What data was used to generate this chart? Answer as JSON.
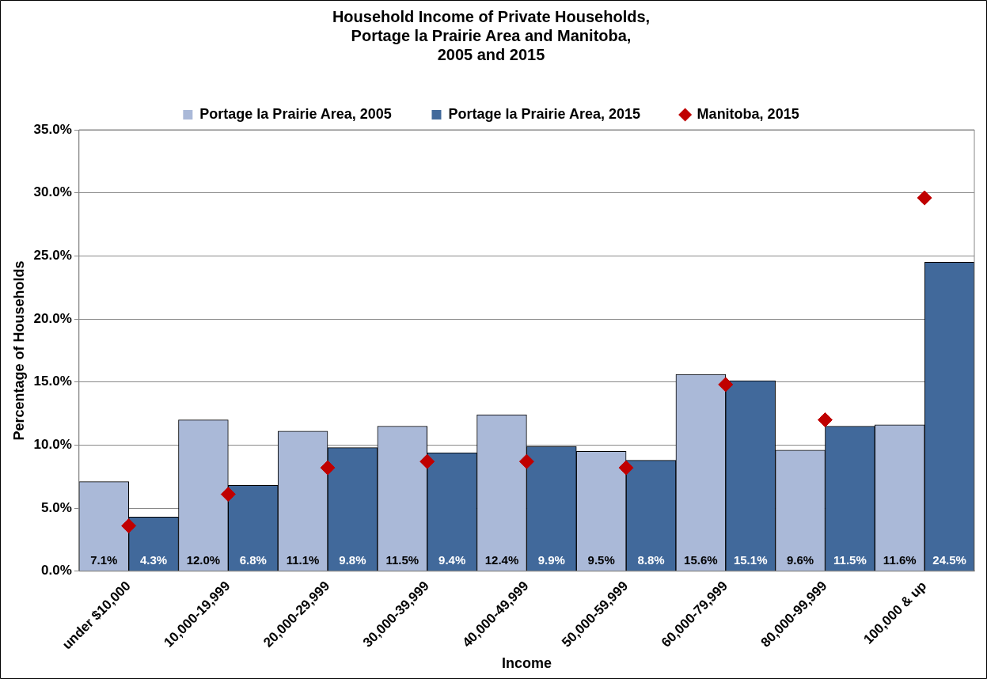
{
  "chart_data": {
    "type": "bar",
    "title": "Household Income of Private Households,\nPortage la Prairie Area and Manitoba,\n2005 and 2015",
    "xlabel": "Income",
    "ylabel": "Percentage of Households",
    "categories": [
      "under $10,000",
      "10,000-19,999",
      "20,000-29,999",
      "30,000-39,999",
      "40,000-49,999",
      "50,000-59,999",
      "60,000-79,999",
      "80,000-99,999",
      "100,000 & up"
    ],
    "series": [
      {
        "name": "Portage la Prairie Area, 2005",
        "color": "#aab9d8",
        "values": [
          7.1,
          12.0,
          11.1,
          11.5,
          12.4,
          9.5,
          15.6,
          9.6,
          11.6
        ],
        "value_labels": [
          "7.1%",
          "12.0%",
          "11.1%",
          "11.5%",
          "12.4%",
          "9.5%",
          "15.6%",
          "9.6%",
          "11.6%"
        ]
      },
      {
        "name": "Portage la Prairie Area, 2015",
        "color": "#41699b",
        "values": [
          4.3,
          6.8,
          9.8,
          9.4,
          9.9,
          8.8,
          15.1,
          11.5,
          24.5
        ],
        "value_labels": [
          "4.3%",
          "6.8%",
          "9.8%",
          "9.4%",
          "9.9%",
          "8.8%",
          "15.1%",
          "11.5%",
          "24.5%"
        ]
      },
      {
        "name": "Manitoba, 2015",
        "type": "scatter",
        "marker": "diamond",
        "color": "#c00000",
        "values": [
          3.6,
          6.1,
          8.2,
          8.7,
          8.7,
          8.2,
          14.8,
          12.0,
          29.6
        ]
      }
    ],
    "ylim": [
      0,
      35
    ],
    "yticks": [
      {
        "value": 0,
        "label": "0.0%"
      },
      {
        "value": 5,
        "label": "5.0%"
      },
      {
        "value": 10,
        "label": "10.0%"
      },
      {
        "value": 15,
        "label": "15.0%"
      },
      {
        "value": 20,
        "label": "20.0%"
      },
      {
        "value": 25,
        "label": "25.0%"
      },
      {
        "value": 30,
        "label": "30.0%"
      },
      {
        "value": 35,
        "label": "35.0%"
      }
    ],
    "grid": "y",
    "legend": "top"
  }
}
